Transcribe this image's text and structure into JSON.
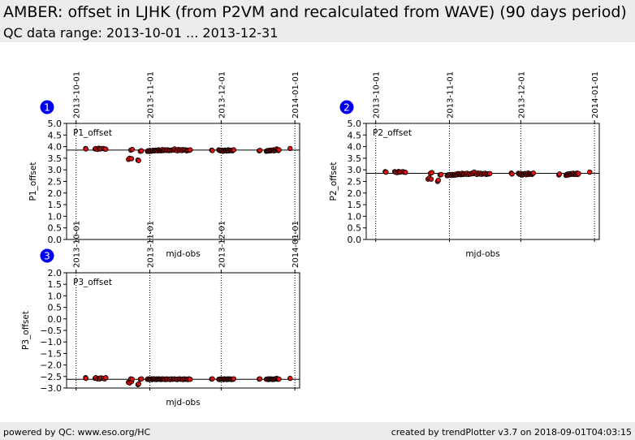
{
  "header": {
    "title": "AMBER: offset in LJHK (from P2VM and recalculated from WAVE) (90 days period)",
    "subtitle": "QC data range: 2013-10-01 ... 2013-12-31"
  },
  "footer": {
    "left": "powered by QC: www.eso.org/HC",
    "right": "created by trendPlotter v3.7 on 2018-09-01T04:03:15"
  },
  "colors": {
    "point": "#dd1111",
    "point_edge": "#000000",
    "badge": "#0000ee",
    "reference_line": "#000000"
  },
  "chart_data": [
    {
      "type": "scatter",
      "id": "1",
      "label": "P1_offset",
      "ylabel": "P1_offset",
      "xlabel": "mjd-obs",
      "ylim": [
        0.0,
        5.0
      ],
      "yticks": [
        "0.0",
        "0.5",
        "1.0",
        "1.5",
        "2.0",
        "2.5",
        "3.0",
        "3.5",
        "4.0",
        "4.5",
        "5.0"
      ],
      "date_ticks": [
        "2013-10-01",
        "2013-11-01",
        "2013-12-01",
        "2014-01-01"
      ],
      "reference": 3.85,
      "x": [
        6,
        6.1,
        10,
        10.3,
        11,
        11.6,
        12,
        12.5,
        13.4,
        14,
        14.5,
        24,
        24.5,
        25,
        25.3,
        25.6,
        28,
        28.3,
        29,
        29.5,
        32,
        32.3,
        32.7,
        33,
        33.3,
        33.7,
        34,
        34.3,
        34.7,
        35,
        35.3,
        35.7,
        36,
        36.3,
        36.7,
        37,
        37.3,
        37.7,
        38,
        38.3,
        38.7,
        39,
        39.5,
        40,
        40.4,
        41,
        41.5,
        42,
        42.6,
        43,
        43.4,
        44,
        44.5,
        45,
        45.5,
        46,
        46.5,
        47,
        47.5,
        48,
        48.5,
        49,
        49.5,
        50,
        59,
        59.3,
        62,
        62.3,
        62.7,
        63,
        63.3,
        63.7,
        64,
        64.3,
        64.7,
        65,
        65.3,
        65.7,
        66,
        66.3,
        66.7,
        67,
        67.3,
        67.7,
        68,
        68.3,
        79,
        79.3,
        82,
        82.3,
        82.7,
        83,
        83.3,
        83.7,
        84,
        84.3,
        84.7,
        85,
        85.3,
        85.7,
        86,
        86.3,
        86.7,
        87,
        87.3,
        92
      ],
      "y": [
        3.92,
        3.9,
        3.9,
        3.92,
        3.88,
        3.93,
        3.9,
        3.91,
        3.92,
        3.9,
        3.89,
        3.45,
        3.5,
        3.85,
        3.48,
        3.88,
        3.42,
        3.4,
        3.8,
        3.82,
        3.8,
        3.82,
        3.79,
        3.83,
        3.8,
        3.82,
        3.81,
        3.84,
        3.83,
        3.82,
        3.85,
        3.83,
        3.84,
        3.82,
        3.86,
        3.83,
        3.85,
        3.82,
        3.84,
        3.87,
        3.83,
        3.85,
        3.86,
        3.84,
        3.86,
        3.83,
        3.85,
        3.84,
        3.86,
        3.85,
        3.9,
        3.85,
        3.82,
        3.88,
        3.84,
        3.86,
        3.83,
        3.87,
        3.85,
        3.86,
        3.82,
        3.85,
        3.84,
        3.86,
        3.85,
        3.83,
        3.86,
        3.84,
        3.82,
        3.85,
        3.83,
        3.8,
        3.84,
        3.82,
        3.85,
        3.83,
        3.81,
        3.84,
        3.86,
        3.82,
        3.85,
        3.83,
        3.84,
        3.82,
        3.85,
        3.86,
        3.82,
        3.84,
        3.8,
        3.82,
        3.83,
        3.81,
        3.84,
        3.82,
        3.85,
        3.83,
        3.84,
        3.86,
        3.82,
        3.84,
        3.85,
        3.9,
        3.87,
        3.83,
        3.86,
        3.92
      ]
    },
    {
      "type": "scatter",
      "id": "2",
      "label": "P2_offset",
      "ylabel": "P2_offset",
      "xlabel": "mjd-obs",
      "ylim": [
        0.0,
        5.0
      ],
      "yticks": [
        "0.0",
        "0.5",
        "1.0",
        "1.5",
        "2.0",
        "2.5",
        "3.0",
        "3.5",
        "4.0",
        "4.5",
        "5.0"
      ],
      "date_ticks": [
        "2013-10-01",
        "2013-11-01",
        "2013-12-01",
        "2014-01-01"
      ],
      "reference": 2.85,
      "x": [
        6,
        6.3,
        10,
        10.3,
        11,
        11.6,
        12,
        12.5,
        13.4,
        14,
        14.5,
        24,
        24.5,
        25,
        25.3,
        25.6,
        28,
        28.3,
        29,
        29.5,
        32,
        32.3,
        32.7,
        33,
        33.3,
        33.7,
        34,
        34.3,
        34.7,
        35,
        35.3,
        35.7,
        36,
        36.3,
        36.7,
        37,
        37.3,
        37.7,
        38,
        38.3,
        38.7,
        39,
        39.5,
        40,
        40.4,
        41,
        41.5,
        42,
        42.6,
        43,
        43.4,
        44,
        44.5,
        45,
        45.5,
        46,
        46.5,
        47,
        47.5,
        48,
        48.5,
        49,
        49.5,
        50,
        59,
        59.3,
        62,
        62.3,
        62.7,
        63,
        63.3,
        63.7,
        64,
        64.3,
        64.7,
        65,
        65.3,
        65.7,
        66,
        66.3,
        66.7,
        67,
        67.3,
        67.7,
        68,
        68.3,
        79,
        79.3,
        82,
        82.3,
        82.7,
        83,
        83.3,
        83.7,
        84,
        84.3,
        84.7,
        85,
        85.3,
        85.7,
        86,
        86.3,
        86.7,
        87,
        87.3,
        92
      ],
      "y": [
        2.92,
        2.9,
        2.92,
        2.9,
        2.88,
        2.93,
        2.9,
        2.91,
        2.92,
        2.9,
        2.89,
        2.6,
        2.65,
        2.85,
        2.6,
        2.88,
        2.5,
        2.55,
        2.78,
        2.8,
        2.75,
        2.78,
        2.76,
        2.8,
        2.77,
        2.79,
        2.76,
        2.8,
        2.78,
        2.77,
        2.8,
        2.78,
        2.82,
        2.79,
        2.84,
        2.8,
        2.82,
        2.79,
        2.83,
        2.85,
        2.8,
        2.82,
        2.84,
        2.81,
        2.85,
        2.8,
        2.83,
        2.82,
        2.86,
        2.84,
        2.9,
        2.84,
        2.8,
        2.86,
        2.82,
        2.85,
        2.81,
        2.84,
        2.83,
        2.85,
        2.8,
        2.83,
        2.82,
        2.84,
        2.86,
        2.82,
        2.85,
        2.82,
        2.8,
        2.84,
        2.81,
        2.78,
        2.82,
        2.8,
        2.84,
        2.82,
        2.79,
        2.83,
        2.86,
        2.8,
        2.84,
        2.82,
        2.83,
        2.8,
        2.84,
        2.86,
        2.78,
        2.82,
        2.76,
        2.8,
        2.82,
        2.78,
        2.82,
        2.8,
        2.84,
        2.81,
        2.83,
        2.85,
        2.8,
        2.82,
        2.84,
        2.8,
        2.86,
        2.8,
        2.84,
        2.9
      ]
    },
    {
      "type": "scatter",
      "id": "3",
      "label": "P3_offset",
      "ylabel": "P3_offset",
      "xlabel": "mjd-obs",
      "ylim": [
        -3.0,
        2.0
      ],
      "yticks": [
        "−3.0",
        "−2.5",
        "−2.0",
        "−1.5",
        "−1.0",
        "−0.5",
        "0.0",
        "0.5",
        "1.0",
        "1.5",
        "2.0"
      ],
      "date_ticks": [
        "2013-10-01",
        "2013-11-01",
        "2013-12-01",
        "2014-01-01"
      ],
      "reference": -2.62,
      "x": [
        6,
        6.1,
        10,
        10.3,
        11,
        11.6,
        12,
        12.5,
        13.4,
        14,
        14.5,
        24,
        24.5,
        25,
        25.3,
        25.6,
        28,
        28.3,
        29,
        29.5,
        32,
        32.3,
        32.7,
        33,
        33.3,
        33.7,
        34,
        34.3,
        34.7,
        35,
        35.3,
        35.7,
        36,
        36.3,
        36.7,
        37,
        37.3,
        37.7,
        38,
        38.3,
        38.7,
        39,
        39.5,
        40,
        40.4,
        41,
        41.5,
        42,
        42.6,
        43,
        43.4,
        44,
        44.5,
        45,
        45.5,
        46,
        46.5,
        47,
        47.5,
        48,
        48.5,
        49,
        49.5,
        50,
        59,
        59.3,
        62,
        62.3,
        62.7,
        63,
        63.3,
        63.7,
        64,
        64.3,
        64.7,
        65,
        65.3,
        65.7,
        66,
        66.3,
        66.7,
        67,
        67.3,
        67.7,
        68,
        68.3,
        79,
        79.3,
        82,
        82.3,
        82.7,
        83,
        83.3,
        83.7,
        84,
        84.3,
        84.7,
        85,
        85.3,
        85.7,
        86,
        86.3,
        86.7,
        87,
        87.3,
        92
      ],
      "y": [
        -2.55,
        -2.58,
        -2.58,
        -2.55,
        -2.6,
        -2.58,
        -2.6,
        -2.56,
        -2.58,
        -2.6,
        -2.55,
        -2.75,
        -2.78,
        -2.6,
        -2.72,
        -2.62,
        -2.85,
        -2.82,
        -2.62,
        -2.6,
        -2.62,
        -2.6,
        -2.63,
        -2.61,
        -2.62,
        -2.6,
        -2.63,
        -2.61,
        -2.6,
        -2.62,
        -2.61,
        -2.63,
        -2.6,
        -2.62,
        -2.61,
        -2.6,
        -2.62,
        -2.63,
        -2.61,
        -2.6,
        -2.62,
        -2.61,
        -2.63,
        -2.6,
        -2.62,
        -2.61,
        -2.63,
        -2.6,
        -2.62,
        -2.61,
        -2.6,
        -2.62,
        -2.63,
        -2.61,
        -2.6,
        -2.62,
        -2.61,
        -2.63,
        -2.6,
        -2.62,
        -2.61,
        -2.63,
        -2.6,
        -2.62,
        -2.61,
        -2.6,
        -2.62,
        -2.63,
        -2.61,
        -2.6,
        -2.62,
        -2.61,
        -2.63,
        -2.6,
        -2.62,
        -2.61,
        -2.63,
        -2.6,
        -2.62,
        -2.61,
        -2.6,
        -2.62,
        -2.63,
        -2.61,
        -2.62,
        -2.6,
        -2.61,
        -2.6,
        -2.62,
        -2.61,
        -2.63,
        -2.6,
        -2.62,
        -2.61,
        -2.6,
        -2.62,
        -2.63,
        -2.61,
        -2.62,
        -2.6,
        -2.61,
        -2.58,
        -2.6,
        -2.62,
        -2.61,
        -2.58
      ]
    }
  ]
}
